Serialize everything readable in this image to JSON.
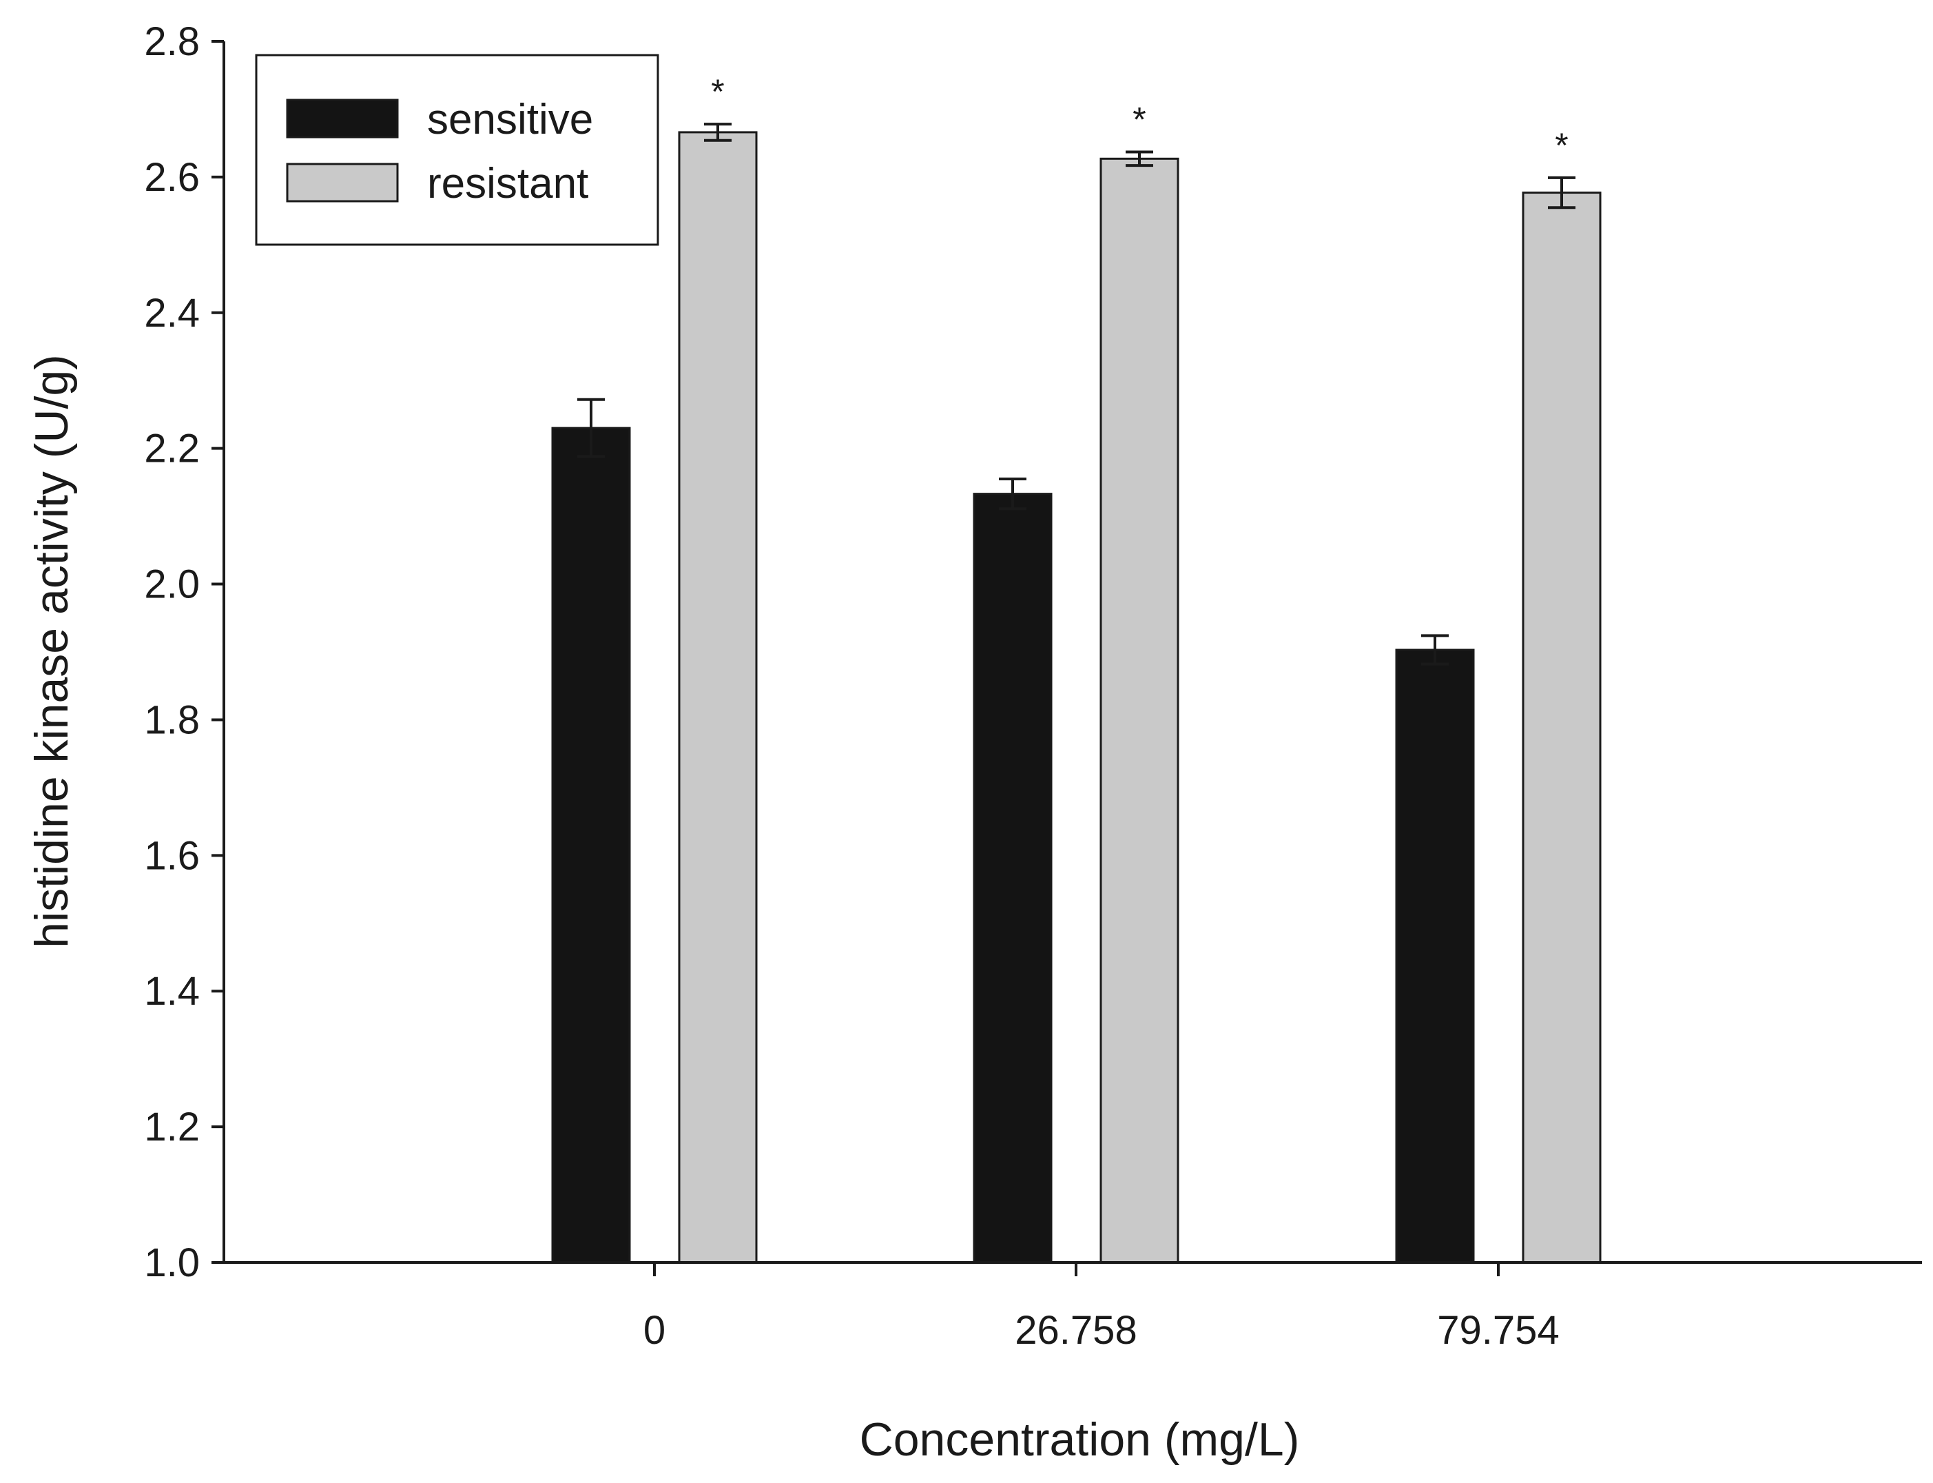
{
  "chart_data": {
    "type": "bar",
    "title": "",
    "xlabel": "Concentration (mg/L)",
    "ylabel": "histidine kinase activity (U/g)",
    "categories": [
      "0",
      "26.758",
      "79.754"
    ],
    "ylim": [
      1.0,
      2.8
    ],
    "yticks": [
      "1.0",
      "1.2",
      "1.4",
      "1.6",
      "1.8",
      "2.0",
      "2.2",
      "2.4",
      "2.6",
      "2.8"
    ],
    "grid": false,
    "legend_position": "top-left",
    "series": [
      {
        "name": "sensitive",
        "color": "#141414",
        "values": [
          2.23,
          2.133,
          1.903
        ],
        "errors": [
          0.042,
          0.022,
          0.021
        ],
        "annotations": [
          "",
          "",
          ""
        ]
      },
      {
        "name": "resistant",
        "color": "#c9c9c9",
        "values": [
          2.666,
          2.627,
          2.577
        ],
        "errors": [
          0.012,
          0.01,
          0.022
        ],
        "annotations": [
          "*",
          "*",
          "*"
        ]
      }
    ]
  }
}
